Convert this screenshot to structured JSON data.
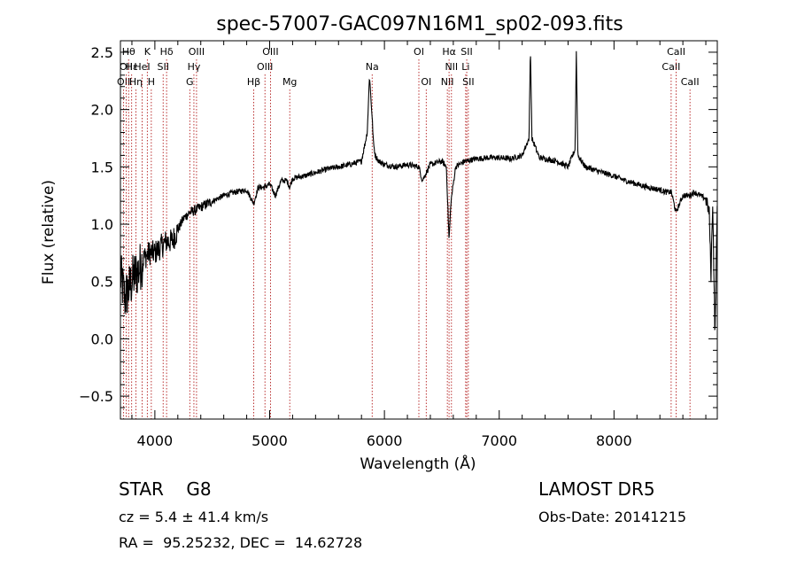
{
  "chart_data": {
    "type": "line",
    "title": "spec-57007-GAC097N16M1_sp02-093.fits",
    "xlabel": "Wavelength (Å)",
    "ylabel": "Flux (relative)",
    "xlim": [
      3700,
      8900
    ],
    "ylim": [
      -0.7,
      2.6
    ],
    "xticks": [
      4000,
      5000,
      6000,
      7000,
      8000
    ],
    "xtick_labels": [
      "4000",
      "5000",
      "6000",
      "7000",
      "8000"
    ],
    "yticks": [
      -0.5,
      0.0,
      0.5,
      1.0,
      1.5,
      2.0,
      2.5
    ],
    "ytick_labels": [
      "−0.5",
      "0.0",
      "0.5",
      "1.0",
      "1.5",
      "2.0",
      "2.5"
    ],
    "grid": false,
    "line_color": "#000000",
    "marker_color": "#aa0000",
    "series": [
      {
        "name": "",
        "x": [
          3700,
          3740,
          3780,
          3820,
          3860,
          3900,
          3950,
          4000,
          4050,
          4100,
          4150,
          4200,
          4250,
          4300,
          4350,
          4400,
          4500,
          4600,
          4700,
          4800,
          4861,
          4900,
          4950,
          5000,
          5050,
          5100,
          5150,
          5175,
          5200,
          5300,
          5400,
          5500,
          5600,
          5700,
          5800,
          5850,
          5870,
          5885,
          5895,
          5905,
          5920,
          5950,
          6000,
          6100,
          6200,
          6300,
          6330,
          6400,
          6500,
          6540,
          6563,
          6580,
          6620,
          6700,
          6800,
          6900,
          7000,
          7100,
          7200,
          7260,
          7272,
          7285,
          7350,
          7500,
          7600,
          7660,
          7672,
          7685,
          7750,
          7900,
          8000,
          8100,
          8200,
          8300,
          8400,
          8450,
          8500,
          8540,
          8600,
          8660,
          8700,
          8750,
          8800,
          8830,
          8845,
          8860,
          8880,
          8900
        ],
        "y": [
          0.55,
          0.35,
          0.45,
          0.55,
          0.6,
          0.7,
          0.75,
          0.75,
          0.8,
          0.85,
          0.85,
          0.95,
          1.05,
          1.1,
          1.12,
          1.15,
          1.2,
          1.25,
          1.28,
          1.3,
          1.18,
          1.32,
          1.32,
          1.35,
          1.25,
          1.38,
          1.38,
          1.32,
          1.4,
          1.42,
          1.45,
          1.48,
          1.5,
          1.52,
          1.55,
          1.8,
          2.3,
          2.05,
          1.9,
          1.7,
          1.6,
          1.55,
          1.52,
          1.5,
          1.52,
          1.5,
          1.38,
          1.52,
          1.55,
          1.5,
          0.85,
          1.2,
          1.5,
          1.55,
          1.57,
          1.58,
          1.58,
          1.57,
          1.6,
          1.75,
          2.55,
          1.75,
          1.58,
          1.55,
          1.5,
          1.65,
          2.5,
          1.6,
          1.5,
          1.45,
          1.42,
          1.38,
          1.35,
          1.32,
          1.3,
          1.28,
          1.28,
          1.1,
          1.25,
          1.25,
          1.28,
          1.25,
          1.22,
          1.1,
          0.55,
          1.2,
          0.0,
          1.2
        ]
      }
    ],
    "line_markers": [
      {
        "x": 3728,
        "row": 2,
        "label": "OII"
      },
      {
        "x": 3750,
        "row": 1,
        "label": "OII"
      },
      {
        "x": 3771,
        "row": 0,
        "label": "Hθ"
      },
      {
        "x": 3798,
        "row": 1,
        "label": "Hε"
      },
      {
        "x": 3835,
        "row": 2,
        "label": "Hη"
      },
      {
        "x": 3889,
        "row": 1,
        "label": "HeI"
      },
      {
        "x": 3934,
        "row": 0,
        "label": "K"
      },
      {
        "x": 3969,
        "row": 2,
        "label": "H"
      },
      {
        "x": 4072,
        "row": 1,
        "label": "SII"
      },
      {
        "x": 4102,
        "row": 0,
        "label": "Hδ"
      },
      {
        "x": 4304,
        "row": 2,
        "label": "G"
      },
      {
        "x": 4340,
        "row": 1,
        "label": "Hγ"
      },
      {
        "x": 4363,
        "row": 0,
        "label": "OIII"
      },
      {
        "x": 4861,
        "row": 2,
        "label": "Hβ"
      },
      {
        "x": 4959,
        "row": 1,
        "label": "OIII"
      },
      {
        "x": 5007,
        "row": 0,
        "label": "OIII"
      },
      {
        "x": 5175,
        "row": 2,
        "label": "Mg"
      },
      {
        "x": 5893,
        "row": 1,
        "label": "Na"
      },
      {
        "x": 6300,
        "row": 0,
        "label": "OI"
      },
      {
        "x": 6364,
        "row": 2,
        "label": "OI"
      },
      {
        "x": 6548,
        "row": 2,
        "label": "NII"
      },
      {
        "x": 6563,
        "row": 0,
        "label": "Hα"
      },
      {
        "x": 6584,
        "row": 1,
        "label": "NII"
      },
      {
        "x": 6708,
        "row": 1,
        "label": "Li"
      },
      {
        "x": 6717,
        "row": 0,
        "label": "SII"
      },
      {
        "x": 6731,
        "row": 2,
        "label": "SII"
      },
      {
        "x": 8498,
        "row": 1,
        "label": "CaII"
      },
      {
        "x": 8542,
        "row": 0,
        "label": "CaII"
      },
      {
        "x": 8662,
        "row": 2,
        "label": "CaII"
      }
    ]
  },
  "footer": {
    "class": "STAR    G8",
    "survey": "LAMOST DR5",
    "cz": "cz = 5.4 ± 41.4 km/s",
    "obs_date": "Obs-Date: 20141215",
    "radec": "RA =  95.25232, DEC =  14.62728"
  }
}
